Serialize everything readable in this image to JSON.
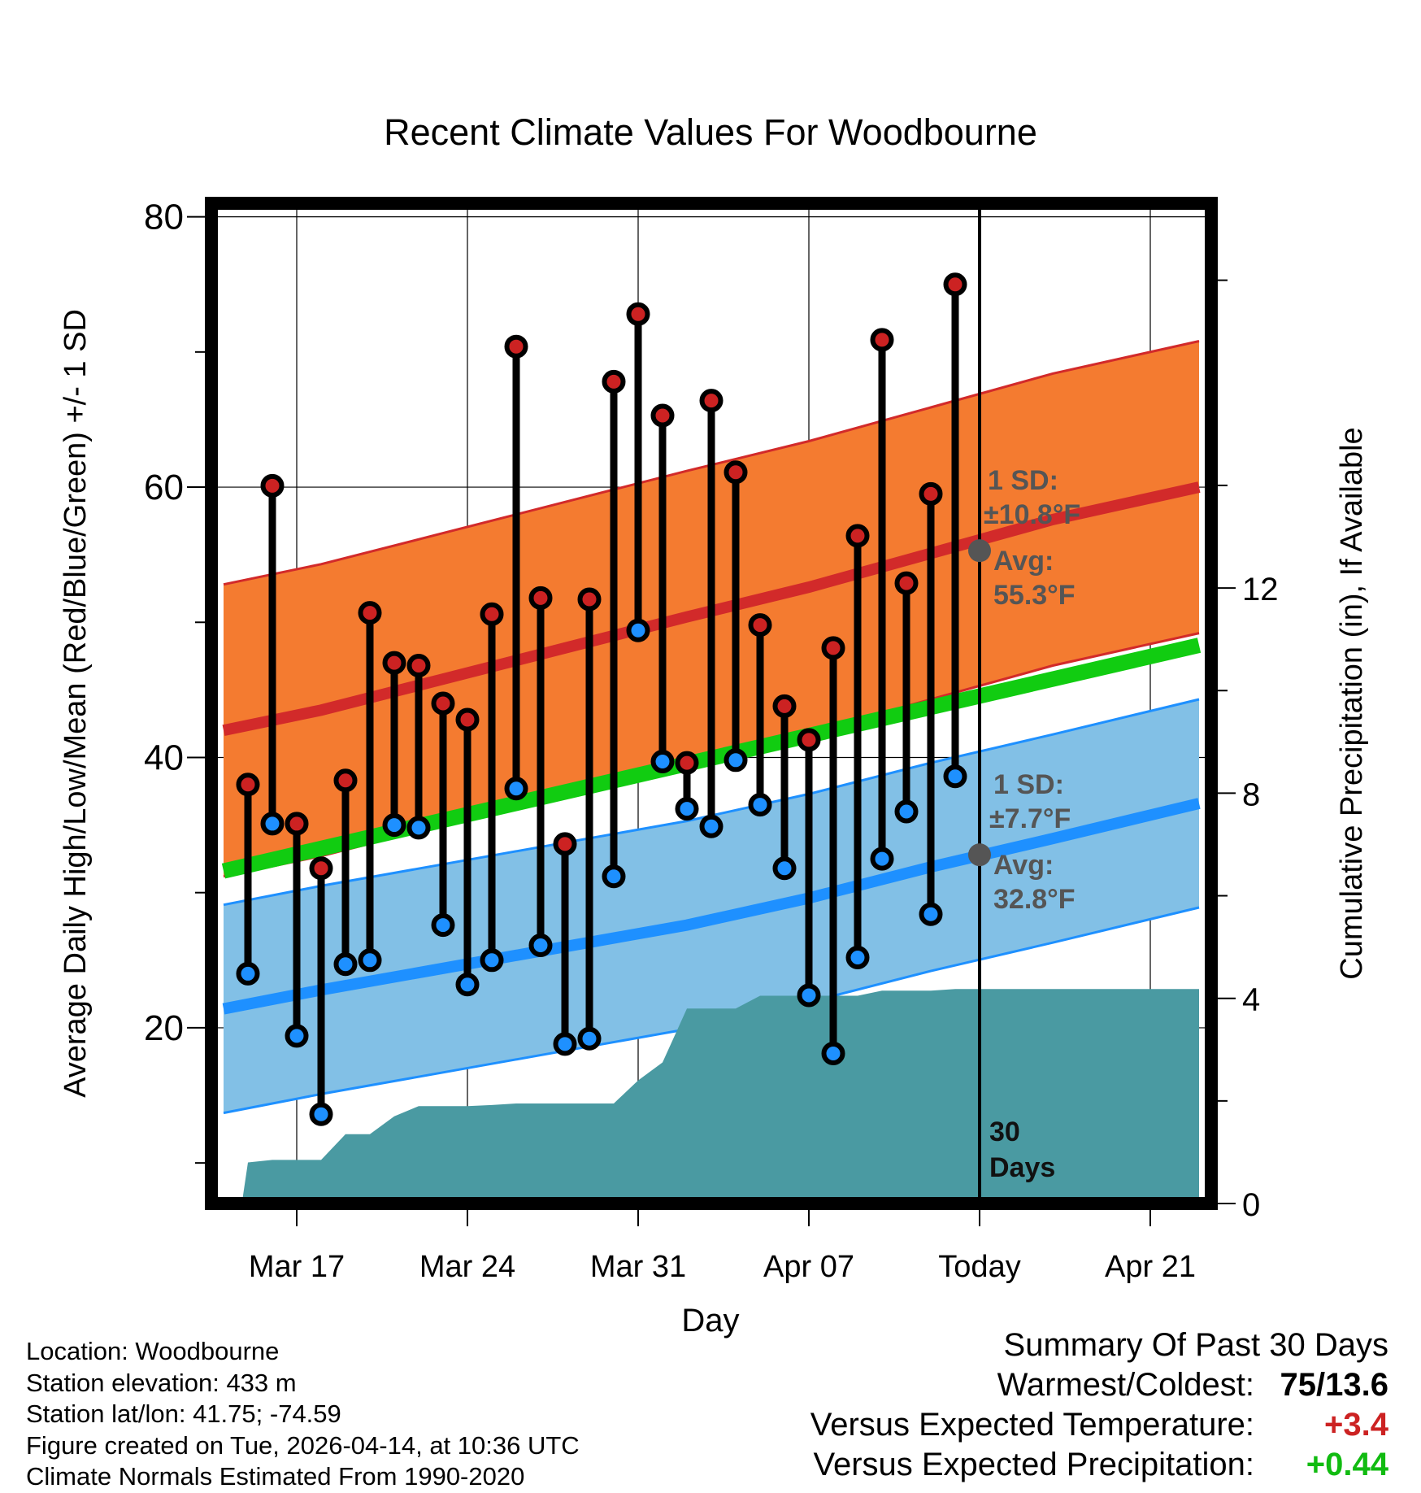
{
  "chart_data": {
    "type": "scatter",
    "title": "Recent Climate Values For Woodbourne",
    "xlabel": "Day",
    "ylabel": "Average Daily High/Low/Mean (Red/Blue/Green) +/- 1 SD",
    "y2label": "Cumulative Precipitation (in), If Available",
    "x_tick_labels": [
      "Mar 17",
      "Mar 24",
      "Mar 31",
      "Apr 07",
      "Today",
      "Apr 21"
    ],
    "x_tick_days": [
      3,
      10,
      17,
      24,
      31,
      38
    ],
    "xlim": [
      -0.5,
      40.5
    ],
    "ylim": [
      7,
      81
    ],
    "y_ticks": [
      20,
      40,
      60,
      80
    ],
    "y2lim": [
      0,
      19.5
    ],
    "y2_ticks": [
      0,
      4,
      8,
      12
    ],
    "grid": true,
    "today_day": 31,
    "today_label": [
      "30",
      "Days"
    ],
    "daily": {
      "day": [
        1,
        2,
        3,
        4,
        5,
        6,
        7,
        8,
        9,
        10,
        11,
        12,
        13,
        14,
        15,
        16,
        17,
        18,
        19,
        20,
        21,
        22,
        23,
        24,
        25,
        26,
        27,
        28,
        29,
        30
      ],
      "high": [
        38,
        60.1,
        35.1,
        31.8,
        38.3,
        50.7,
        47,
        46.8,
        44,
        42.8,
        50.6,
        70.4,
        51.8,
        33.6,
        51.7,
        67.8,
        72.8,
        65.3,
        39.6,
        66.4,
        61.1,
        49.8,
        43.8,
        41.3,
        48.1,
        56.4,
        70.9,
        52.9,
        59.5,
        75
      ],
      "low": [
        24,
        35.1,
        19.4,
        13.6,
        24.7,
        25,
        35,
        34.8,
        27.6,
        23.2,
        25,
        37.7,
        26.1,
        18.8,
        19.2,
        31.2,
        49.4,
        39.7,
        36.2,
        34.9,
        39.8,
        36.5,
        31.8,
        22.4,
        18.1,
        25.2,
        32.5,
        36,
        28.4,
        38.6
      ]
    },
    "normal_high": {
      "day": [
        0,
        4,
        9,
        14,
        19,
        24,
        29,
        34,
        40
      ],
      "mean": [
        42,
        43.5,
        45.8,
        48.1,
        50.4,
        52.6,
        55.1,
        57.6,
        60
      ],
      "sd": 10.8
    },
    "normal_low": {
      "day": [
        0,
        4,
        9,
        14,
        19,
        24,
        29,
        34,
        40
      ],
      "mean": [
        21.4,
        22.8,
        24.4,
        26,
        27.6,
        29.6,
        31.9,
        34,
        36.6
      ],
      "sd": 7.7
    },
    "normal_mean": {
      "day": [
        0,
        40
      ],
      "values": [
        31.6,
        48.3
      ]
    },
    "precip_cumulative": {
      "day": [
        0,
        0.75,
        1,
        2,
        3,
        4,
        5,
        6,
        7,
        8,
        9,
        10,
        11,
        12,
        13,
        14,
        15,
        16,
        17,
        18,
        19,
        20,
        21,
        22,
        23,
        24,
        25,
        26,
        27,
        28,
        29,
        30,
        40
      ],
      "inches": [
        0,
        0,
        0.8,
        0.85,
        0.85,
        0.85,
        1.35,
        1.35,
        1.7,
        1.9,
        1.9,
        1.9,
        1.92,
        1.95,
        1.95,
        1.95,
        1.95,
        1.95,
        2.4,
        2.75,
        3.8,
        3.8,
        3.8,
        4.05,
        4.05,
        4.05,
        4.05,
        4.05,
        4.15,
        4.15,
        4.15,
        4.18,
        4.18
      ]
    },
    "annotations": {
      "high_sd": [
        "1 SD:",
        "±10.8°F"
      ],
      "high_avg": [
        "Avg:",
        "55.3°F"
      ],
      "high_avg_value": 55.3,
      "low_sd": [
        "1 SD:",
        "±7.7°F"
      ],
      "low_avg": [
        "Avg:",
        "32.8°F"
      ],
      "low_avg_value": 32.8
    },
    "colors": {
      "high_band": "#f47b30",
      "high_line": "#d22a2a",
      "low_band": "#82c0e6",
      "low_line": "#1e90ff",
      "mean_line": "#11cc11",
      "precip": "#4a9aa2",
      "annot": "#555555",
      "high_dot": "#cc2222",
      "low_dot": "#1e90ff"
    }
  },
  "info": {
    "location": "Location: Woodbourne",
    "elevation": "Station elevation: 433 m",
    "latlon": "Station lat/lon: 41.75; -74.59",
    "created": "Figure created on Tue, 2026-04-14, at 10:36 UTC",
    "normals": "Climate Normals Estimated From 1990-2020"
  },
  "summary": {
    "title": "Summary Of Past 30 Days",
    "warm_cold_label": "Warmest/Coldest:",
    "warm_cold_value": "75/13.6",
    "temp_label": "Versus Expected Temperature:",
    "temp_value": "+3.4",
    "temp_color": "#cc2222",
    "precip_label": "Versus Expected Precipitation:",
    "precip_value": "+0.44",
    "precip_color": "#11bb11"
  }
}
